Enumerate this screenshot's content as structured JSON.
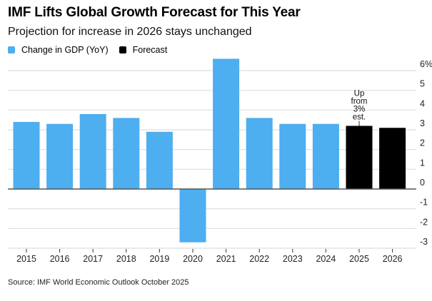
{
  "header": {
    "title": "IMF Lifts Global Growth Forecast for This Year",
    "subtitle": "Projection for increase in 2026 stays unchanged"
  },
  "legend": [
    {
      "label": "Change in GDP (YoY)",
      "color": "#4daef0"
    },
    {
      "label": "Forecast",
      "color": "#000000"
    }
  ],
  "footer": {
    "source": "Source: IMF World Economic Outlook October 2025"
  },
  "chart_data": {
    "type": "bar",
    "title": "IMF Lifts Global Growth Forecast for This Year",
    "subtitle": "Projection for increase in 2026 stays unchanged",
    "xlabel": "",
    "ylabel": "",
    "categories": [
      "2015",
      "2016",
      "2017",
      "2018",
      "2019",
      "2020",
      "2021",
      "2022",
      "2023",
      "2024",
      "2025",
      "2026"
    ],
    "series": [
      {
        "name": "Change in GDP (YoY)",
        "color": "#4daef0",
        "values": [
          3.4,
          3.3,
          3.8,
          3.6,
          2.9,
          -2.7,
          6.6,
          3.6,
          3.3,
          3.3,
          null,
          null
        ]
      },
      {
        "name": "Forecast",
        "color": "#000000",
        "values": [
          null,
          null,
          null,
          null,
          null,
          null,
          null,
          null,
          null,
          null,
          3.2,
          3.1
        ]
      }
    ],
    "ylim": [
      -3,
      6
    ],
    "yticks": [
      6,
      5,
      4,
      3,
      2,
      1,
      0,
      -1,
      -2,
      -3
    ],
    "ytick_labels": [
      "6%",
      "5",
      "4",
      "3",
      "2",
      "1",
      "0",
      "-1",
      "-2",
      "-3"
    ],
    "y_axis_side": "right",
    "grid": true,
    "legend_position": "top-left",
    "annotations": [
      {
        "category": "2025",
        "text": [
          "Up",
          "from",
          "3%",
          "est."
        ]
      }
    ]
  }
}
